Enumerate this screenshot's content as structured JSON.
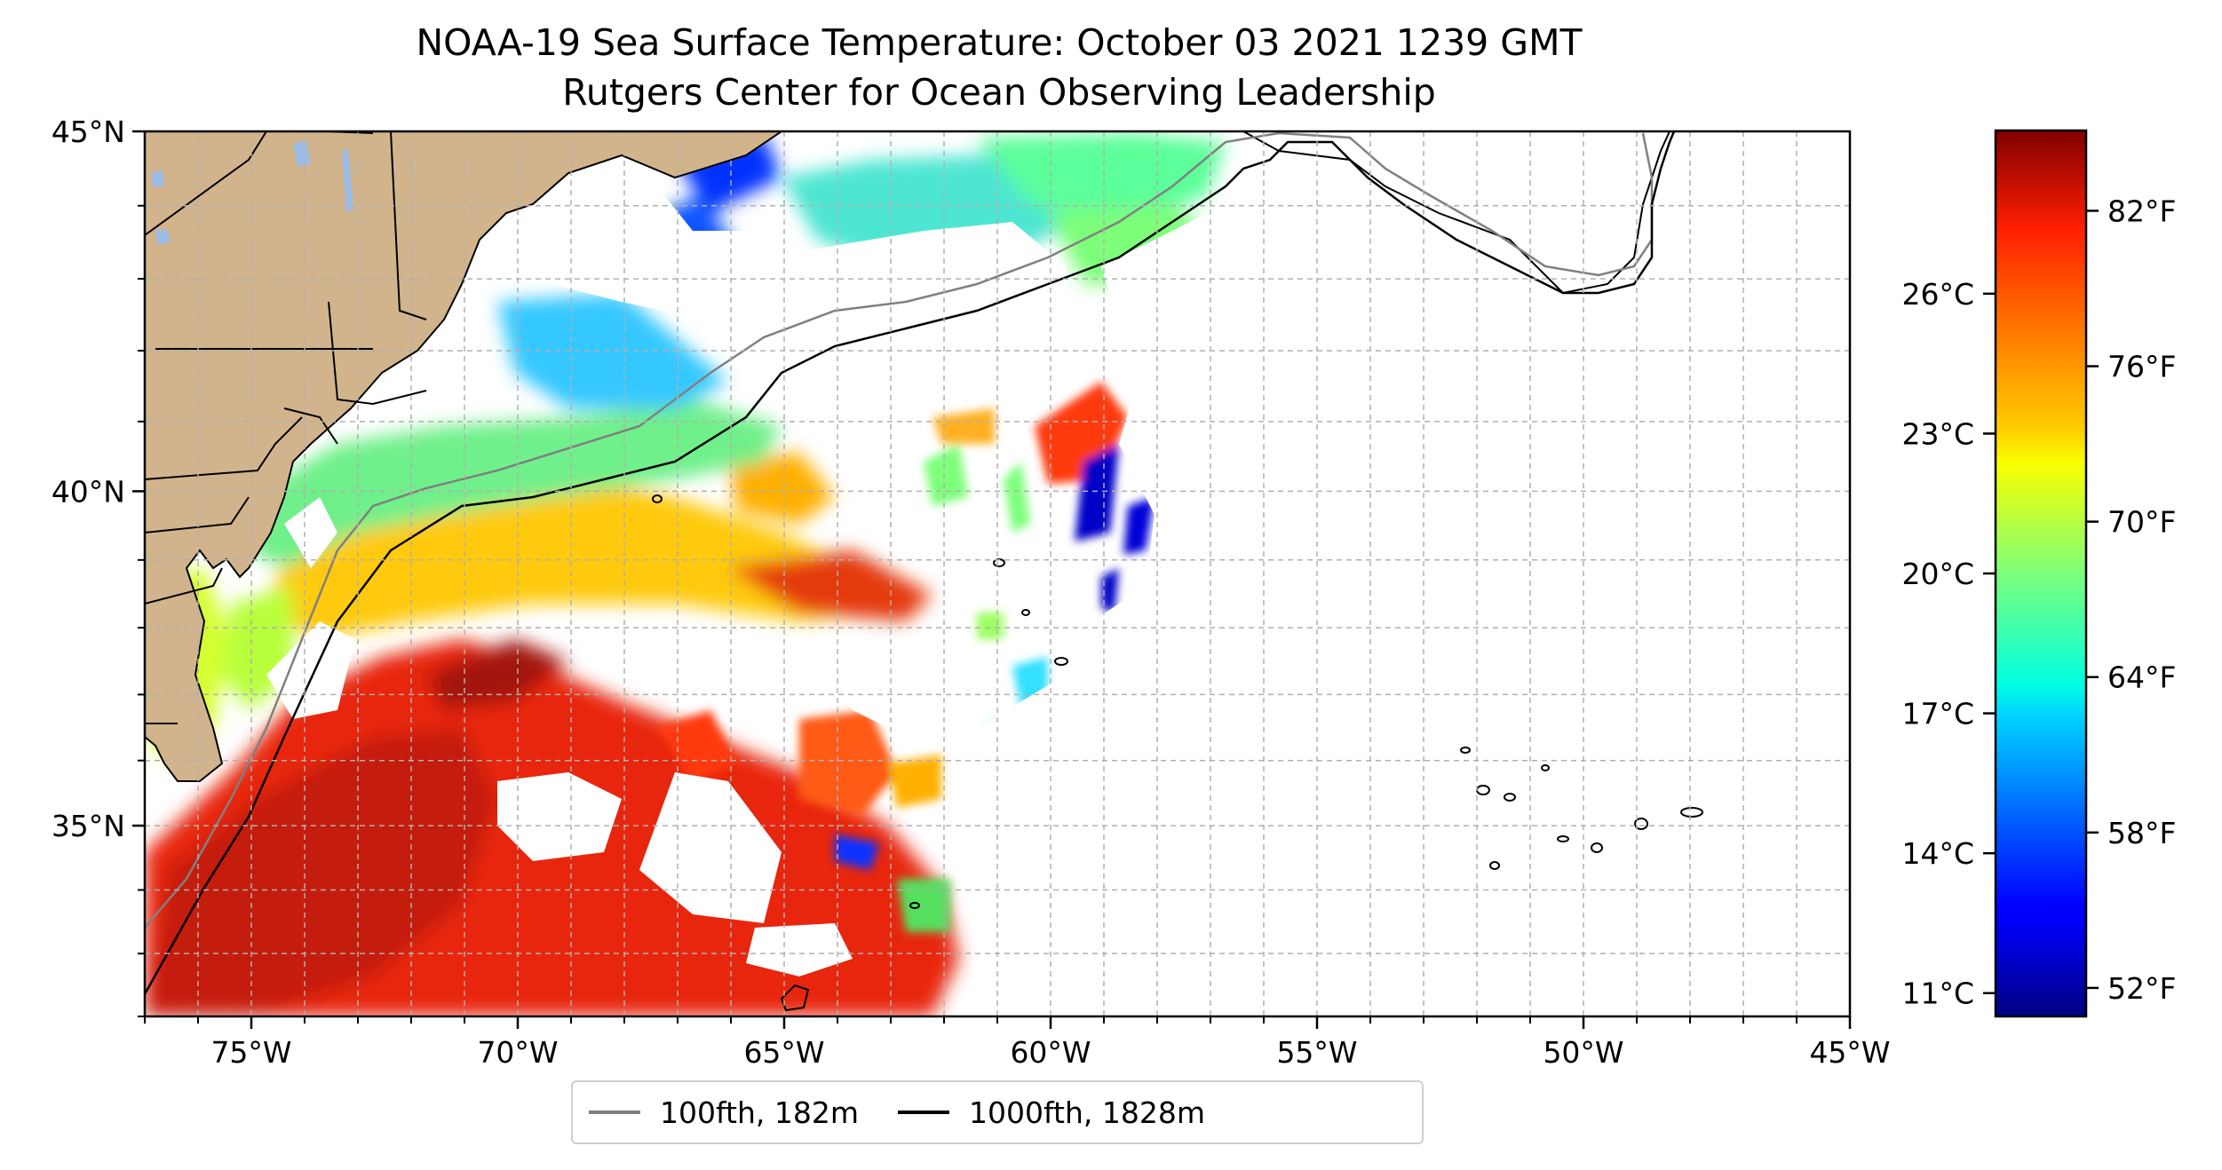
{
  "title": {
    "line1": "NOAA-19 Sea Surface Temperature: October 03 2021 1239 GMT",
    "line2": "Rutgers Center for Ocean Observing Leadership"
  },
  "map": {
    "lon_range": [
      -77,
      -45
    ],
    "lat_range": [
      32,
      45
    ],
    "x_ticks": [
      {
        "lon": -75,
        "label": "75°W"
      },
      {
        "lon": -70,
        "label": "70°W"
      },
      {
        "lon": -65,
        "label": "65°W"
      },
      {
        "lon": -60,
        "label": "60°W"
      },
      {
        "lon": -55,
        "label": "55°W"
      },
      {
        "lon": -50,
        "label": "50°W"
      },
      {
        "lon": -45,
        "label": "45°W"
      }
    ],
    "y_ticks": [
      {
        "lat": 45,
        "label": "45°N"
      },
      {
        "lat": 40,
        "label": "40°N"
      },
      {
        "lat": 35,
        "label": "35°N"
      }
    ],
    "gridlines": true,
    "land_color": "#d2b48c",
    "lake_color": "#9dbde6"
  },
  "colorbar": {
    "colormap": "jet",
    "range_f": [
      50.9,
      85.1
    ],
    "fahrenheit_ticks": [
      {
        "value": 82,
        "label": "82°F"
      },
      {
        "value": 76,
        "label": "76°F"
      },
      {
        "value": 70,
        "label": "70°F"
      },
      {
        "value": 64,
        "label": "64°F"
      },
      {
        "value": 58,
        "label": "58°F"
      },
      {
        "value": 52,
        "label": "52°F"
      }
    ],
    "celsius_ticks": [
      {
        "value": 26,
        "label": "26°C"
      },
      {
        "value": 23,
        "label": "23°C"
      },
      {
        "value": 20,
        "label": "20°C"
      },
      {
        "value": 17,
        "label": "17°C"
      },
      {
        "value": 14,
        "label": "14°C"
      },
      {
        "value": 11,
        "label": "11°C"
      }
    ]
  },
  "legend": {
    "entries": [
      {
        "label": "100fth, 182m",
        "color": "#808080"
      },
      {
        "label": "1000fth, 1828m",
        "color": "#000000"
      }
    ]
  }
}
